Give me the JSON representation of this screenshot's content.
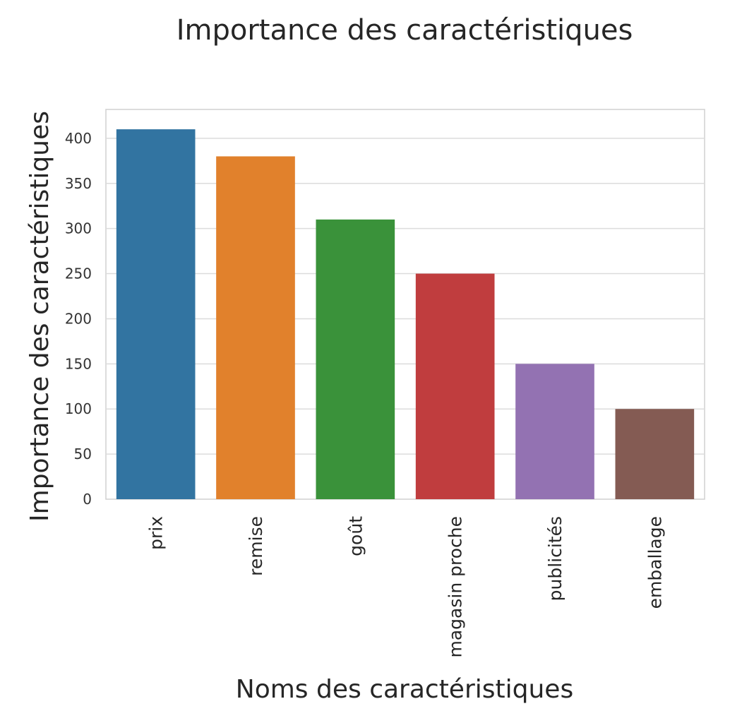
{
  "chart_data": {
    "type": "bar",
    "title": "Importance des caractéristiques",
    "xlabel": "Noms des caractéristiques",
    "ylabel": "Importance des caractéristiques",
    "categories": [
      "prix",
      "remise",
      "goût",
      "magasin proche",
      "publicités",
      "emballage"
    ],
    "values": [
      410,
      380,
      310,
      250,
      150,
      100
    ],
    "colors": [
      "#3274a1",
      "#e1812c",
      "#3a923a",
      "#c03d3e",
      "#9372b2",
      "#845b53"
    ],
    "yticks": [
      0,
      50,
      100,
      150,
      200,
      250,
      300,
      350,
      400
    ],
    "ylim": [
      0,
      432
    ],
    "grid": true,
    "legend": "none"
  }
}
